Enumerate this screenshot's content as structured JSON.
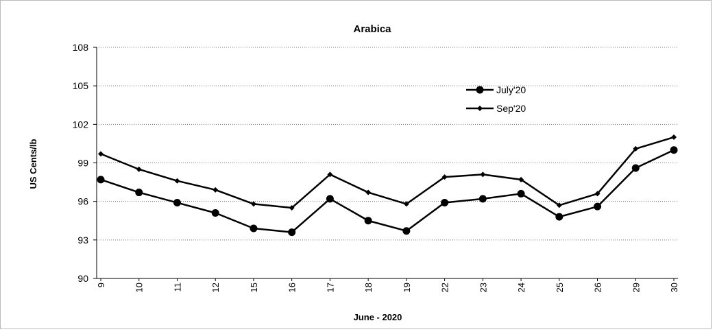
{
  "chart_data": {
    "type": "line",
    "title": "Arabica",
    "xlabel": "June - 2020",
    "ylabel": "US Cents/lb",
    "categories": [
      "9",
      "10",
      "11",
      "12",
      "15",
      "16",
      "17",
      "18",
      "19",
      "22",
      "23",
      "24",
      "25",
      "26",
      "29",
      "30"
    ],
    "ylim": [
      90,
      108
    ],
    "yticks": [
      "90",
      "93",
      "96",
      "99",
      "102",
      "105",
      "108"
    ],
    "grid": true,
    "legend_position": "top-right",
    "series": [
      {
        "name": "July'20",
        "marker": "circle",
        "values": [
          97.7,
          96.7,
          95.9,
          95.1,
          93.9,
          93.6,
          96.2,
          94.5,
          93.7,
          95.9,
          96.2,
          96.6,
          94.8,
          95.6,
          98.6,
          100.0
        ]
      },
      {
        "name": "Sep'20",
        "marker": "diamond",
        "values": [
          99.7,
          98.5,
          97.6,
          96.9,
          95.8,
          95.5,
          98.1,
          96.7,
          95.8,
          97.9,
          98.1,
          97.7,
          95.7,
          96.6,
          100.1,
          101.0
        ]
      }
    ]
  }
}
